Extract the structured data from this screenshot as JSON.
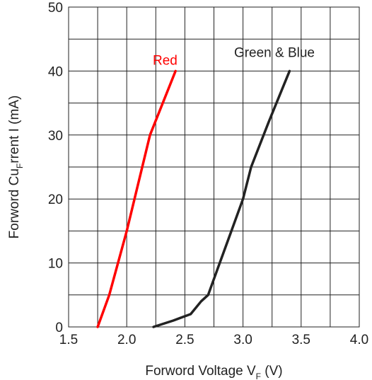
{
  "chart_data": {
    "type": "line",
    "xlim": [
      1.5,
      4.0
    ],
    "ylim": [
      0,
      50
    ],
    "x_ticks": [
      "1.5",
      "2.0",
      "2.5",
      "3.0",
      "3.5",
      "4.0"
    ],
    "y_ticks": [
      "0",
      "10",
      "20",
      "30",
      "40",
      "50"
    ],
    "x_tick_values": [
      1.5,
      2.0,
      2.5,
      3.0,
      3.5,
      4.0
    ],
    "y_tick_values": [
      0,
      10,
      20,
      30,
      40,
      50
    ],
    "x_minor_step": 0.25,
    "y_minor_step": 5,
    "grid": true,
    "xlabel": {
      "text": "Forword Voltage V",
      "sub": "F",
      "suffix": " (V)"
    },
    "ylabel": {
      "text": "Forword Cu",
      "sub": "F",
      "suffix": "rrent I  (mA)"
    },
    "series": [
      {
        "name": "Red",
        "color": "#ff0000",
        "x": [
          1.75,
          1.85,
          2.0,
          2.2,
          2.42
        ],
        "y": [
          0,
          5,
          15,
          30,
          40
        ]
      },
      {
        "name": "Green & Blue",
        "color": "#222222",
        "x": [
          2.23,
          2.4,
          2.55,
          2.64,
          2.7,
          2.8,
          2.9,
          3.0,
          3.07,
          3.22,
          3.4
        ],
        "y": [
          0,
          1,
          2,
          4,
          5,
          10,
          15,
          20,
          25,
          32,
          40
        ]
      }
    ]
  }
}
